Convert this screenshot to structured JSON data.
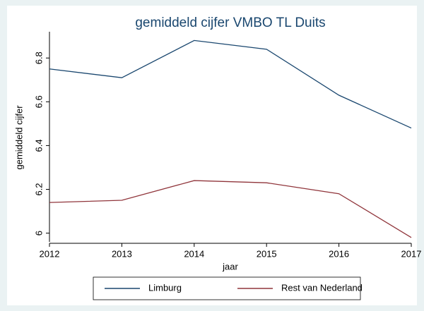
{
  "chart_data": {
    "type": "line",
    "title": "gemiddeld cijfer VMBO TL Duits",
    "xlabel": "jaar",
    "ylabel": "gemiddeld cijfer",
    "x": [
      2012,
      2013,
      2014,
      2015,
      2016,
      2017
    ],
    "series": [
      {
        "name": "Limburg",
        "color": "#1a476f",
        "values": [
          6.75,
          6.71,
          6.88,
          6.84,
          6.63,
          6.48
        ]
      },
      {
        "name": "Rest van Nederland",
        "color": "#90353b",
        "values": [
          6.14,
          6.15,
          6.24,
          6.23,
          6.18,
          5.98
        ]
      }
    ],
    "xlim": [
      2012,
      2017
    ],
    "xticks": [
      2012,
      2013,
      2014,
      2015,
      2016,
      2017
    ],
    "ylim": [
      5.96,
      6.92
    ],
    "yticks": [
      6,
      6.2,
      6.4,
      6.6,
      6.8
    ],
    "grid": false,
    "legend": "bottom"
  }
}
